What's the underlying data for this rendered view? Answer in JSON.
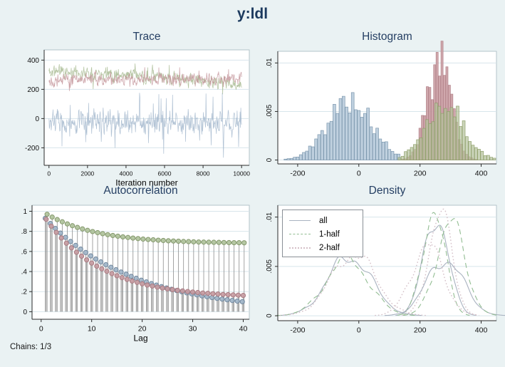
{
  "window": {
    "title": "y:ldl",
    "footnote": "Chains: 1/3",
    "bg_color": "#eaf2f3",
    "title_color": "#1c3a5e",
    "plot_bg": "#ffffff",
    "grid_color": "#d8e5eb",
    "axis_color": "#2b2b2b",
    "border_color": "#aebfc6"
  },
  "palette": {
    "chain1_blue": {
      "line": "#a4b9ce",
      "fill": "#bccedd",
      "stroke": "#7d98ae"
    },
    "chain2_pink": {
      "line": "#c4959b",
      "fill": "#cb9fa4",
      "stroke": "#b28289"
    },
    "chain3_green": {
      "line": "#a7ba90",
      "fill": "#b5c29c",
      "stroke": "#8fa06b"
    },
    "stem_gray": "#8e8e8e",
    "all_solid": "#a9b2c0",
    "half1_dashed": "#92bd92",
    "half2_dotted": "#d4bfc7"
  },
  "chart_data": [
    {
      "id": "trace",
      "type": "line",
      "title": "Trace",
      "xlabel": "Iteration number",
      "x_range": [
        -250,
        10400
      ],
      "y_range": [
        -320,
        470
      ],
      "x_ticks": [
        {
          "v": 0,
          "label": "0"
        },
        {
          "v": 2000,
          "label": "2000"
        },
        {
          "v": 4000,
          "label": "4000"
        },
        {
          "v": 6000,
          "label": "6000"
        },
        {
          "v": 8000,
          "label": "8000"
        },
        {
          "v": 10000,
          "label": "10000"
        }
      ],
      "y_ticks": [
        {
          "v": -200,
          "label": "-200"
        },
        {
          "v": 0,
          "label": "0"
        },
        {
          "v": 200,
          "label": "200"
        },
        {
          "v": 400,
          "label": "400"
        }
      ],
      "series": [
        {
          "name": "chain3",
          "color": "#a7ba90",
          "mean": 322,
          "trend": -92,
          "amp": 40,
          "spike_p": 0.04,
          "spike_amp": 60,
          "seed": 11
        },
        {
          "name": "chain2",
          "color": "#c4959b",
          "mean": 268,
          "trend": 0,
          "amp": 38,
          "spike_p": 0.04,
          "spike_amp": 55,
          "seed": 22
        },
        {
          "name": "chain1",
          "color": "#a4b9ce",
          "mean": -28,
          "trend": 0,
          "amp": 75,
          "spike_p": 0.05,
          "spike_amp": 110,
          "seed": 33
        }
      ]
    },
    {
      "id": "histogram",
      "type": "bar",
      "title": "Histogram",
      "x_range": [
        -265,
        450
      ],
      "y_range": [
        -0.0004,
        0.0112
      ],
      "x_ticks": [
        {
          "v": -200,
          "label": "-200"
        },
        {
          "v": 0,
          "label": "0"
        },
        {
          "v": 200,
          "label": "200"
        },
        {
          "v": 400,
          "label": "400"
        }
      ],
      "y_ticks": [
        {
          "v": 0,
          "label": "0"
        },
        {
          "v": 0.005,
          "label": ".005"
        },
        {
          "v": 0.01,
          "label": ".01"
        }
      ],
      "series": [
        {
          "name": "chain1",
          "mean": -30,
          "sd": 72,
          "peak": 0.0062,
          "bin": 10,
          "range": [
            -245,
            135
          ],
          "noise": 0.45,
          "fill": "#bccedd",
          "stroke": "#7d98ae",
          "opacity": 0.95,
          "seed": 5
        },
        {
          "name": "chain2",
          "mean": 262,
          "sd": 38,
          "peak": 0.0107,
          "bin": 8,
          "range": [
            140,
            386
          ],
          "noise": 0.38,
          "fill": "#cb9fa4",
          "stroke": "#b28289",
          "opacity": 0.9,
          "seed": 6
        },
        {
          "name": "chain3",
          "mean": 280,
          "sd": 62,
          "peak": 0.0057,
          "bin": 10,
          "range": [
            128,
            442
          ],
          "noise": 0.5,
          "fill": "#b5c29c",
          "stroke": "#8fa06b",
          "opacity": 0.7,
          "seed": 7
        }
      ]
    },
    {
      "id": "autocorrelation",
      "type": "lollipop",
      "title": "Autocorrelation",
      "xlabel": "Lag",
      "x_range": [
        -1.8,
        41.2
      ],
      "y_range": [
        -0.075,
        1.06
      ],
      "x_ticks": [
        {
          "v": 0,
          "label": "0"
        },
        {
          "v": 10,
          "label": "10"
        },
        {
          "v": 20,
          "label": "20"
        },
        {
          "v": 30,
          "label": "30"
        },
        {
          "v": 40,
          "label": "40"
        }
      ],
      "y_ticks": [
        {
          "v": 0,
          "label": "0"
        },
        {
          "v": 0.2,
          "label": ".2"
        },
        {
          "v": 0.4,
          "label": ".4"
        },
        {
          "v": 0.6,
          "label": ".6"
        },
        {
          "v": 0.8,
          "label": ".8"
        },
        {
          "v": 1,
          "label": "1"
        }
      ],
      "lags_start": 1,
      "series": [
        {
          "name": "chain1",
          "offset": -0.18,
          "fill": "#9fb4c8",
          "stroke": "#72889e",
          "values": [
            0.93,
            0.878,
            0.829,
            0.783,
            0.74,
            0.699,
            0.66,
            0.623,
            0.589,
            0.556,
            0.525,
            0.496,
            0.468,
            0.442,
            0.418,
            0.395,
            0.373,
            0.352,
            0.333,
            0.314,
            0.297,
            0.28,
            0.265,
            0.25,
            0.236,
            0.223,
            0.211,
            0.199,
            0.188,
            0.178,
            0.168,
            0.158,
            0.15,
            0.141,
            0.133,
            0.126,
            0.119,
            0.112,
            0.106,
            0.1
          ]
        },
        {
          "name": "chain2",
          "offset": 0,
          "fill": "#c79ba1",
          "stroke": "#a87b82",
          "values": [
            0.92,
            0.852,
            0.79,
            0.734,
            0.682,
            0.636,
            0.592,
            0.553,
            0.516,
            0.484,
            0.454,
            0.427,
            0.402,
            0.379,
            0.358,
            0.339,
            0.322,
            0.306,
            0.292,
            0.278,
            0.266,
            0.256,
            0.245,
            0.236,
            0.228,
            0.22,
            0.213,
            0.207,
            0.201,
            0.196,
            0.191,
            0.186,
            0.183,
            0.179,
            0.176,
            0.172,
            0.17,
            0.167,
            0.165,
            0.162
          ]
        },
        {
          "name": "chain3",
          "offset": 0.18,
          "fill": "#aec29a",
          "stroke": "#85986d",
          "values": [
            0.97,
            0.942,
            0.917,
            0.895,
            0.874,
            0.856,
            0.839,
            0.824,
            0.81,
            0.798,
            0.787,
            0.777,
            0.767,
            0.759,
            0.752,
            0.745,
            0.739,
            0.733,
            0.728,
            0.723,
            0.719,
            0.716,
            0.712,
            0.709,
            0.706,
            0.704,
            0.702,
            0.699,
            0.698,
            0.696,
            0.694,
            0.693,
            0.692,
            0.691,
            0.69,
            0.689,
            0.688,
            0.687,
            0.687,
            0.686
          ]
        }
      ]
    },
    {
      "id": "density",
      "type": "line",
      "title": "Density",
      "x_range": [
        -265,
        450
      ],
      "y_range": [
        -0.0005,
        0.0112
      ],
      "x_ticks": [
        {
          "v": -200,
          "label": "-200"
        },
        {
          "v": 0,
          "label": "0"
        },
        {
          "v": 200,
          "label": "200"
        },
        {
          "v": 400,
          "label": "400"
        }
      ],
      "y_ticks": [
        {
          "v": 0,
          "label": "0"
        },
        {
          "v": 0.005,
          "label": ".005"
        },
        {
          "v": 0.01,
          "label": ".01"
        }
      ],
      "legend": {
        "items": [
          {
            "label": "all"
          },
          {
            "label": "1-half"
          },
          {
            "label": "2-half"
          }
        ]
      },
      "series": [
        {
          "chain": "chain1",
          "style": "all",
          "center": -30,
          "sd": 72,
          "peak": 0.006,
          "seed": 41
        },
        {
          "chain": "chain1",
          "style": "1half",
          "center": -38,
          "sd": 70,
          "peak": 0.0058,
          "seed": 42
        },
        {
          "chain": "chain1",
          "style": "2half",
          "center": -18,
          "sd": 73,
          "peak": 0.0063,
          "seed": 43
        },
        {
          "chain": "chain2",
          "style": "all",
          "center": 252,
          "sd": 40,
          "peak": 0.0102,
          "seed": 44
        },
        {
          "chain": "chain2",
          "style": "1half",
          "center": 245,
          "sd": 36,
          "peak": 0.0108,
          "seed": 45
        },
        {
          "chain": "chain2",
          "style": "2half",
          "center": 266,
          "sd": 38,
          "peak": 0.0104,
          "seed": 46
        },
        {
          "chain": "chain3",
          "style": "all",
          "center": 282,
          "sd": 60,
          "peak": 0.0057,
          "seed": 47
        },
        {
          "chain": "chain3",
          "style": "1half",
          "center": 300,
          "sd": 47,
          "peak": 0.0094,
          "seed": 48
        },
        {
          "chain": "chain3",
          "style": "2half",
          "center": 224,
          "sd": 52,
          "peak": 0.0071,
          "seed": 49
        }
      ]
    }
  ]
}
